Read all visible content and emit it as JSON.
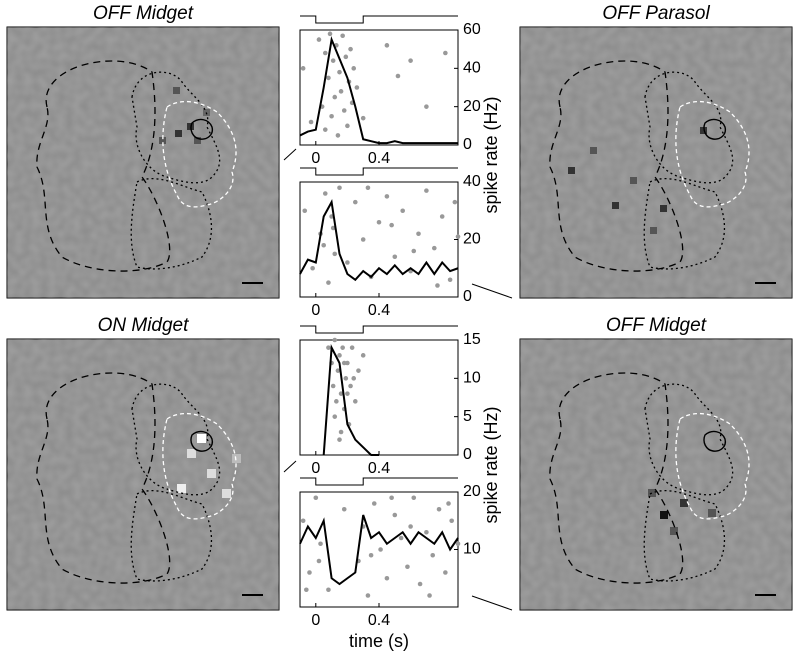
{
  "panels": [
    {
      "title": "OFF Midget"
    },
    {
      "title": "OFF Parasol"
    },
    {
      "title": "ON Midget"
    },
    {
      "title": "OFF Midget"
    }
  ],
  "chart_data": [
    {
      "type": "line",
      "ylabel": "spike rate (Hz)",
      "color": "#000000",
      "x": [
        -0.1,
        -0.05,
        0,
        0.05,
        0.1,
        0.15,
        0.2,
        0.25,
        0.3,
        0.35,
        0.4,
        0.45,
        0.5,
        0.55,
        0.6,
        0.65,
        0.7,
        0.75,
        0.8,
        0.85,
        0.9
      ],
      "values": [
        5,
        7,
        8,
        30,
        55,
        45,
        35,
        20,
        3,
        2,
        1,
        1,
        2,
        1,
        1,
        1,
        1,
        1,
        1,
        1,
        1
      ],
      "raster": {
        "color": "#999999",
        "x": [
          -0.08,
          -0.03,
          0.02,
          0.04,
          0.06,
          0.06,
          0.08,
          0.09,
          0.1,
          0.11,
          0.12,
          0.13,
          0.14,
          0.15,
          0.16,
          0.17,
          0.18,
          0.19,
          0.2,
          0.21,
          0.22,
          0.23,
          0.24,
          0.26,
          0.3,
          0.45,
          0.52,
          0.6,
          0.7,
          0.82
        ],
        "y": [
          40,
          12,
          55,
          20,
          48,
          8,
          35,
          58,
          15,
          44,
          25,
          52,
          5,
          38,
          28,
          57,
          18,
          46,
          10,
          33,
          50,
          22,
          40,
          30,
          14,
          52,
          36,
          44,
          20,
          48
        ]
      },
      "xlim": [
        -0.1,
        0.9
      ],
      "xticks": [
        0,
        0.4
      ],
      "ylim": [
        0,
        60
      ],
      "yticks": [
        0,
        20,
        40,
        60
      ],
      "stimulus": [
        0,
        0.3
      ]
    },
    {
      "type": "line",
      "color": "#000000",
      "x": [
        -0.1,
        -0.05,
        0,
        0.05,
        0.1,
        0.15,
        0.2,
        0.25,
        0.3,
        0.35,
        0.4,
        0.45,
        0.5,
        0.55,
        0.6,
        0.65,
        0.7,
        0.75,
        0.8,
        0.85,
        0.9
      ],
      "values": [
        8,
        13,
        12,
        28,
        33,
        15,
        8,
        6,
        9,
        7,
        10,
        8,
        11,
        8,
        10,
        8,
        12,
        8,
        12,
        9,
        10
      ],
      "raster": {
        "color": "#999999",
        "x": [
          -0.07,
          -0.02,
          0.03,
          0.06,
          0.08,
          0.1,
          0.12,
          0.15,
          0.2,
          0.25,
          0.3,
          0.35,
          0.4,
          0.45,
          0.5,
          0.55,
          0.6,
          0.65,
          0.7,
          0.75,
          0.8,
          0.85,
          0.88,
          0.05,
          0.11,
          0.33,
          0.48,
          0.62,
          0.77,
          0.9
        ],
        "y": [
          30,
          10,
          22,
          36,
          5,
          28,
          15,
          38,
          12,
          33,
          20,
          7,
          26,
          35,
          14,
          30,
          9,
          22,
          37,
          17,
          28,
          6,
          33,
          18,
          24,
          38,
          25,
          16,
          4,
          21
        ]
      },
      "xlim": [
        -0.1,
        0.9
      ],
      "xticks": [
        0,
        0.4
      ],
      "ylim": [
        0,
        40
      ],
      "yticks": [
        0,
        20,
        40
      ],
      "stimulus": [
        0,
        0.3
      ]
    },
    {
      "type": "line",
      "ylabel": "spike rate (Hz)",
      "color": "#000000",
      "x": [
        0.05,
        0.1,
        0.15,
        0.2,
        0.25,
        0.3,
        0.35,
        0.4
      ],
      "values": [
        0,
        14,
        12,
        4,
        2,
        1,
        0,
        0
      ],
      "raster": {
        "color": "#999999",
        "x": [
          0.08,
          0.1,
          0.11,
          0.12,
          0.13,
          0.14,
          0.15,
          0.16,
          0.17,
          0.18,
          0.19,
          0.2,
          0.21,
          0.22,
          0.23,
          0.25,
          0.27,
          0.3,
          0.12,
          0.16,
          0.2,
          0.24,
          0.15,
          0.18
        ],
        "y": [
          14,
          12,
          9,
          15,
          7,
          11,
          13,
          8,
          14,
          6,
          10,
          12,
          4,
          9,
          14,
          7,
          11,
          13,
          5,
          3,
          8,
          10,
          2,
          12
        ]
      },
      "xlim": [
        -0.1,
        0.9
      ],
      "xticks": [
        0,
        0.4
      ],
      "ylim": [
        0,
        15
      ],
      "yticks": [
        0,
        5,
        10,
        15
      ],
      "stimulus": [
        0,
        0.3
      ]
    },
    {
      "type": "line",
      "xlabel": "time (s)",
      "color": "#000000",
      "x": [
        -0.1,
        -0.05,
        0,
        0.05,
        0.1,
        0.15,
        0.2,
        0.25,
        0.3,
        0.35,
        0.4,
        0.45,
        0.5,
        0.55,
        0.6,
        0.65,
        0.7,
        0.75,
        0.8,
        0.85,
        0.9
      ],
      "values": [
        11,
        14,
        12,
        15,
        5,
        4,
        5,
        6,
        16,
        12,
        13,
        11,
        12,
        13,
        11,
        13,
        12,
        11,
        13,
        10,
        12
      ],
      "raster": {
        "color": "#999999",
        "x": [
          -0.08,
          -0.04,
          0.0,
          0.03,
          0.08,
          0.18,
          0.27,
          0.3,
          0.33,
          0.37,
          0.41,
          0.45,
          0.5,
          0.54,
          0.58,
          0.62,
          0.66,
          0.7,
          0.74,
          0.78,
          0.82,
          0.86,
          0.9,
          -0.06,
          0.35,
          0.48,
          0.6,
          0.72,
          0.84,
          0.02
        ],
        "y": [
          15,
          6,
          19,
          11,
          3,
          17,
          8,
          14,
          2,
          18,
          10,
          5,
          16,
          12,
          7,
          19,
          4,
          13,
          9,
          17,
          6,
          15,
          11,
          3,
          9,
          19,
          14,
          2,
          18,
          8
        ]
      },
      "xlim": [
        -0.1,
        0.9
      ],
      "xticks": [
        0,
        0.4
      ],
      "ylim": [
        0,
        20
      ],
      "yticks": [
        10,
        20
      ],
      "stimulus": [
        0,
        0.3
      ]
    }
  ]
}
